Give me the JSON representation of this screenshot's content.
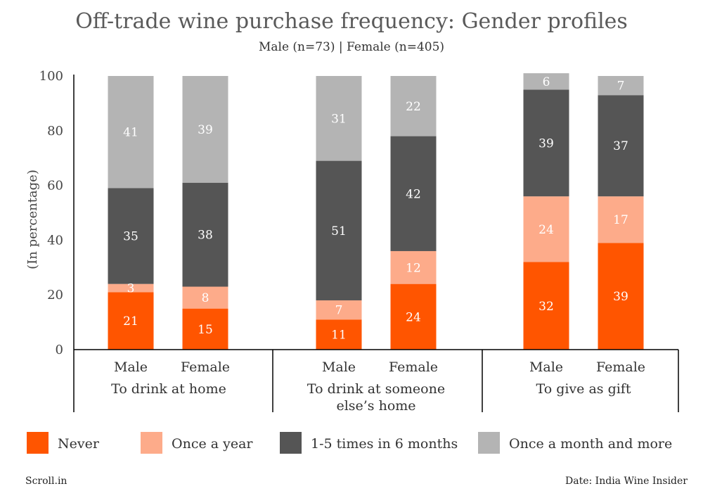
{
  "chart_data": {
    "type": "bar",
    "stacked": true,
    "title": "Off-trade wine purchase frequency: Gender profiles",
    "subtitle": "Male (n=73) | Female (n=405)",
    "ylabel": "(In percentage)",
    "ylim": [
      0,
      100
    ],
    "yticks": [
      0,
      20,
      40,
      60,
      80,
      100
    ],
    "groups": [
      {
        "label": "To drink at home",
        "categories": [
          "Male",
          "Female"
        ]
      },
      {
        "label": "To drink at someone else’s home",
        "label_lines": [
          "To drink at someone",
          "else’s home"
        ],
        "categories": [
          "Male",
          "Female"
        ]
      },
      {
        "label": "To give as gift",
        "categories": [
          "Male",
          "Female"
        ]
      }
    ],
    "series": [
      {
        "name": "Never",
        "color": "#ff5500",
        "values": [
          21,
          15,
          11,
          24,
          32,
          39
        ]
      },
      {
        "name": "Once a year",
        "color": "#fdab8a",
        "values": [
          3,
          8,
          7,
          12,
          24,
          17
        ]
      },
      {
        "name": "1-5 times in 6 months",
        "color": "#555555",
        "values": [
          35,
          38,
          51,
          42,
          39,
          37
        ]
      },
      {
        "name": "Once a month and more",
        "color": "#b4b4b4",
        "values": [
          41,
          39,
          31,
          22,
          6,
          7
        ]
      }
    ],
    "legend_position": "bottom",
    "grid": false
  },
  "footer": {
    "source_left": "Scroll.in",
    "source_right": "Date: India Wine Insider"
  }
}
